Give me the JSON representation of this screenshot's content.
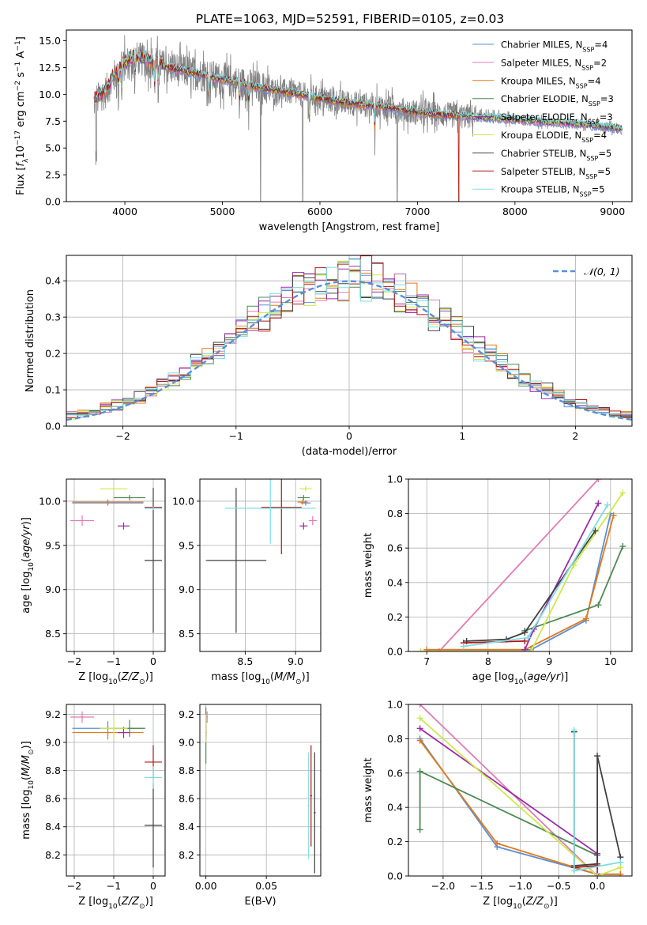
{
  "figure_title": "PLATE=1063, MJD=52591, FIBERID=0105, z=0.03",
  "model_colors": {
    "Chabrier MILES": "#5a8ed8",
    "Salpeter MILES": "#e07bb4",
    "Kroupa MILES": "#e07a1a",
    "Chabrier ELODIE": "#4f8a55",
    "Salpeter ELODIE": "#9b2aa8",
    "Kroupa ELODIE": "#cde84a",
    "Chabrier STELIB": "#404040",
    "Salpeter STELIB": "#b01818",
    "Kroupa STELIB": "#7fdde0"
  },
  "chart_data": [
    {
      "id": "spectrum",
      "type": "line",
      "xlabel": "wavelength [Angstrom, rest frame]",
      "ylabel": "Flux [f_λ 10^-17 erg cm^-2 s^-1 A^-1]",
      "xlim": [
        3400,
        9200
      ],
      "ylim": [
        0,
        16
      ],
      "xticks": [
        "4000",
        "5000",
        "6000",
        "7000",
        "8000",
        "9000"
      ],
      "yticks": [
        "0.0",
        "2.5",
        "5.0",
        "7.5",
        "10.0",
        "12.5",
        "15.0"
      ],
      "legend_position": "top-right",
      "legend": [
        {
          "model": "Chabrier MILES",
          "label": "Chabrier MILES, N",
          "sub": "SSP",
          "tail": "=4"
        },
        {
          "model": "Salpeter MILES",
          "label": "Salpeter MILES, N",
          "sub": "SSP",
          "tail": "=2"
        },
        {
          "model": "Kroupa MILES",
          "label": "Kroupa MILES, N",
          "sub": "SSP",
          "tail": "=4"
        },
        {
          "model": "Chabrier ELODIE",
          "label": "Chabrier ELODIE, N",
          "sub": "SSP",
          "tail": "=3"
        },
        {
          "model": "Salpeter ELODIE",
          "label": "Salpeter ELODIE, N",
          "sub": "SSP",
          "tail": "=3"
        },
        {
          "model": "Kroupa ELODIE",
          "label": "Kroupa ELODIE, N",
          "sub": "SSP",
          "tail": "=4"
        },
        {
          "model": "Chabrier STELIB",
          "label": "Chabrier STELIB, N",
          "sub": "SSP",
          "tail": "=5"
        },
        {
          "model": "Salpeter STELIB",
          "label": "Salpeter STELIB, N",
          "sub": "SSP",
          "tail": "=5"
        },
        {
          "model": "Kroupa STELIB",
          "label": "Kroupa STELIB, N",
          "sub": "SSP",
          "tail": "=5"
        }
      ],
      "observed_color": "#808080",
      "continuum": [
        [
          3680,
          9.2
        ],
        [
          3800,
          10.2
        ],
        [
          3900,
          11.8
        ],
        [
          4000,
          12.8
        ],
        [
          4100,
          13.4
        ],
        [
          4200,
          13.2
        ],
        [
          4400,
          12.6
        ],
        [
          4600,
          12.2
        ],
        [
          4800,
          11.8
        ],
        [
          5000,
          11.4
        ],
        [
          5200,
          11.0
        ],
        [
          5400,
          10.6
        ],
        [
          5600,
          10.3
        ],
        [
          5800,
          10.0
        ],
        [
          6000,
          9.6
        ],
        [
          6200,
          9.3
        ],
        [
          6400,
          9.1
        ],
        [
          6600,
          8.9
        ],
        [
          6800,
          8.6
        ],
        [
          7000,
          8.3
        ],
        [
          7400,
          8.0
        ],
        [
          7800,
          7.8
        ],
        [
          8200,
          7.5
        ],
        [
          8600,
          7.3
        ],
        [
          9000,
          6.9
        ],
        [
          9100,
          6.7
        ]
      ]
    },
    {
      "id": "residuals",
      "type": "step-histogram",
      "xlabel": "(data-model)/error",
      "ylabel": "Normed distribution",
      "xlim": [
        -2.5,
        2.5
      ],
      "ylim": [
        0,
        0.47
      ],
      "xticks": [
        "−2",
        "−1",
        "0",
        "1",
        "2"
      ],
      "yticks": [
        "0.0",
        "0.1",
        "0.2",
        "0.3",
        "0.4"
      ],
      "grid": true,
      "bin_width": 0.1,
      "legend": "𝒩(0, 1)",
      "legend_position": "top-right",
      "normal_color": "#5a8ed8"
    },
    {
      "id": "age_vs_z",
      "type": "errorbar",
      "xlabel": "Z [log10(Z/Z⊙)]",
      "ylabel": "age [log10(age/yr)]",
      "xlim": [
        -2.2,
        0.3
      ],
      "ylim": [
        8.3,
        10.25
      ],
      "xticks": [
        "−2",
        "−1",
        "0"
      ],
      "yticks": [
        "8.5",
        "9.0",
        "9.5",
        "10.0"
      ],
      "grid": true,
      "points": [
        {
          "model": "Chabrier MILES",
          "x": -1.15,
          "xerr": 0.9,
          "y": 9.98,
          "yerr": 0.03
        },
        {
          "model": "Salpeter MILES",
          "x": -1.8,
          "xerr": 0.3,
          "y": 9.78,
          "yerr": 0.06
        },
        {
          "model": "Kroupa MILES",
          "x": -1.15,
          "xerr": 0.9,
          "y": 9.99,
          "yerr": 0.03
        },
        {
          "model": "Chabrier ELODIE",
          "x": -0.6,
          "xerr": 0.4,
          "y": 10.04,
          "yerr": 0.03
        },
        {
          "model": "Salpeter ELODIE",
          "x": -0.75,
          "xerr": 0.15,
          "y": 9.72,
          "yerr": 0.04
        },
        {
          "model": "Kroupa ELODIE",
          "x": -1.0,
          "xerr": 0.35,
          "y": 10.14,
          "yerr": 0.03
        },
        {
          "model": "Chabrier STELIB",
          "x": 0.0,
          "xerr": 0.22,
          "y": 9.33,
          "yerr": 0.82
        },
        {
          "model": "Salpeter STELIB",
          "x": 0.0,
          "xerr": 0.22,
          "y": 9.93,
          "yerr": 0.02
        },
        {
          "model": "Kroupa STELIB",
          "x": 0.0,
          "xerr": 0.22,
          "y": 9.92,
          "yerr": 0.02
        }
      ]
    },
    {
      "id": "age_vs_mass",
      "type": "errorbar",
      "xlabel": "mass [log10(M/M⊙)]",
      "ylabel": "",
      "xlim": [
        8.05,
        9.25
      ],
      "ylim": [
        8.3,
        10.25
      ],
      "xticks": [
        "8.5",
        "9.0"
      ],
      "yticks": [
        "8.5",
        "9.0",
        "9.5",
        "10.0"
      ],
      "grid": true,
      "points": [
        {
          "model": "Chabrier MILES",
          "x": 9.1,
          "xerr": 0.05,
          "y": 9.98,
          "yerr": 0.03
        },
        {
          "model": "Salpeter MILES",
          "x": 9.17,
          "xerr": 0.04,
          "y": 9.78,
          "yerr": 0.05
        },
        {
          "model": "Kroupa MILES",
          "x": 9.07,
          "xerr": 0.05,
          "y": 9.99,
          "yerr": 0.03
        },
        {
          "model": "Chabrier ELODIE",
          "x": 9.08,
          "xerr": 0.06,
          "y": 10.04,
          "yerr": 0.03
        },
        {
          "model": "Salpeter ELODIE",
          "x": 9.08,
          "xerr": 0.04,
          "y": 9.72,
          "yerr": 0.04
        },
        {
          "model": "Kroupa ELODIE",
          "x": 9.1,
          "xerr": 0.06,
          "y": 10.14,
          "yerr": 0.03
        },
        {
          "model": "Chabrier STELIB",
          "x": 8.41,
          "xerr": 0.3,
          "y": 9.33,
          "yerr": 0.82
        },
        {
          "model": "Salpeter STELIB",
          "x": 8.86,
          "xerr": 0.2,
          "y": 9.93,
          "yerr": 0.53
        },
        {
          "model": "Kroupa STELIB",
          "x": 8.75,
          "xerr": 0.45,
          "y": 9.92,
          "yerr": 0.4
        }
      ]
    },
    {
      "id": "weight_vs_age",
      "type": "line",
      "xlabel": "age [log10(age/yr)]",
      "ylabel": "mass weight",
      "xlim": [
        6.7,
        10.35
      ],
      "ylim": [
        0,
        1.0
      ],
      "xticks": [
        "7",
        "8",
        "9",
        "10"
      ],
      "yticks": [
        "0.0",
        "0.2",
        "0.4",
        "0.6",
        "0.8",
        "1.0"
      ],
      "grid": true,
      "series": [
        {
          "model": "Chabrier MILES",
          "x": [
            7.0,
            8.7,
            9.6,
            10.0
          ],
          "y": [
            0.01,
            0.01,
            0.18,
            0.8
          ]
        },
        {
          "model": "Salpeter MILES",
          "x": [
            7.2,
            9.8
          ],
          "y": [
            0.0,
            1.0
          ]
        },
        {
          "model": "Kroupa MILES",
          "x": [
            7.0,
            8.6,
            9.6,
            10.05
          ],
          "y": [
            0.01,
            0.01,
            0.19,
            0.79
          ]
        },
        {
          "model": "Chabrier ELODIE",
          "x": [
            8.6,
            9.8,
            10.2
          ],
          "y": [
            0.12,
            0.27,
            0.61
          ]
        },
        {
          "model": "Salpeter ELODIE",
          "x": [
            8.6,
            8.75,
            9.8
          ],
          "y": [
            0.01,
            0.13,
            0.86
          ]
        },
        {
          "model": "Kroupa ELODIE",
          "x": [
            6.9,
            8.7,
            9.4,
            10.2
          ],
          "y": [
            0.0,
            0.0,
            0.5,
            0.92
          ]
        },
        {
          "model": "Chabrier STELIB",
          "x": [
            7.65,
            8.3,
            8.6,
            9.75
          ],
          "y": [
            0.06,
            0.07,
            0.11,
            0.7
          ]
        },
        {
          "model": "Salpeter STELIB",
          "x": [
            7.6,
            8.6
          ],
          "y": [
            0.05,
            0.06
          ]
        },
        {
          "model": "Kroupa STELIB",
          "x": [
            7.6,
            8.65,
            9.95
          ],
          "y": [
            0.03,
            0.08,
            0.85
          ]
        }
      ]
    },
    {
      "id": "mass_vs_z",
      "type": "errorbar",
      "xlabel": "Z [log10(Z/Z⊙)]",
      "ylabel": "mass [log10(M/M⊙)]",
      "xlim": [
        -2.2,
        0.3
      ],
      "ylim": [
        8.05,
        9.27
      ],
      "xticks": [
        "−2",
        "−1",
        "0"
      ],
      "yticks": [
        "8.2",
        "8.4",
        "8.6",
        "8.8",
        "9.0",
        "9.2"
      ],
      "grid": true,
      "points": [
        {
          "model": "Chabrier MILES",
          "x": -1.15,
          "xerr": 0.9,
          "y": 9.1,
          "yerr": 0.05
        },
        {
          "model": "Salpeter MILES",
          "x": -1.8,
          "xerr": 0.3,
          "y": 9.18,
          "yerr": 0.04
        },
        {
          "model": "Kroupa MILES",
          "x": -1.15,
          "xerr": 0.9,
          "y": 9.07,
          "yerr": 0.05
        },
        {
          "model": "Chabrier ELODIE",
          "x": -0.6,
          "xerr": 0.4,
          "y": 9.1,
          "yerr": 0.06
        },
        {
          "model": "Salpeter ELODIE",
          "x": -0.75,
          "xerr": 0.15,
          "y": 9.07,
          "yerr": 0.04
        },
        {
          "model": "Kroupa ELODIE",
          "x": -1.0,
          "xerr": 0.35,
          "y": 9.1,
          "yerr": 0.08
        },
        {
          "model": "Chabrier STELIB",
          "x": 0.0,
          "xerr": 0.22,
          "y": 8.41,
          "yerr": 0.3
        },
        {
          "model": "Salpeter STELIB",
          "x": 0.0,
          "xerr": 0.22,
          "y": 8.86,
          "yerr": 0.12
        },
        {
          "model": "Kroupa STELIB",
          "x": 0.0,
          "xerr": 0.22,
          "y": 8.75,
          "yerr": 0.08
        }
      ]
    },
    {
      "id": "mass_vs_ebv",
      "type": "errorbar",
      "xlabel": "E(B-V)",
      "ylabel": "",
      "xlim": [
        -0.005,
        0.095
      ],
      "ylim": [
        8.05,
        9.27
      ],
      "xticks": [
        "0.00",
        "0.05"
      ],
      "yticks": [
        "8.2",
        "8.4",
        "8.6",
        "8.8",
        "9.0",
        "9.2"
      ],
      "grid": true,
      "points": [
        {
          "model": "Chabrier MILES",
          "x": 0.0,
          "xerr": 0.0005,
          "y": 9.1,
          "yerr": 0.05
        },
        {
          "model": "Salpeter MILES",
          "x": 0.001,
          "xerr": 0.0005,
          "y": 9.18,
          "yerr": 0.04
        },
        {
          "model": "Kroupa MILES",
          "x": 0.0,
          "xerr": 0.0005,
          "y": 9.07,
          "yerr": 0.05
        },
        {
          "model": "Chabrier ELODIE",
          "x": 0.0,
          "xerr": 0.0005,
          "y": 9.05,
          "yerr": 0.2
        },
        {
          "model": "Salpeter ELODIE",
          "x": 0.0,
          "xerr": 0.0005,
          "y": 9.07,
          "yerr": 0.04
        },
        {
          "model": "Kroupa ELODIE",
          "x": 0.0,
          "xerr": 0.0005,
          "y": 9.1,
          "yerr": 0.1
        },
        {
          "model": "Chabrier STELIB",
          "x": 0.09,
          "xerr": 0.0008,
          "y": 8.5,
          "yerr": 0.43
        },
        {
          "model": "Salpeter STELIB",
          "x": 0.087,
          "xerr": 0.0008,
          "y": 8.62,
          "yerr": 0.36
        },
        {
          "model": "Kroupa STELIB",
          "x": 0.085,
          "xerr": 0.0008,
          "y": 8.55,
          "yerr": 0.38
        }
      ]
    },
    {
      "id": "weight_vs_z",
      "type": "line",
      "xlabel": "Z [log10(Z/Z⊙)]",
      "ylabel": "mass weight",
      "xlim": [
        -2.45,
        0.45
      ],
      "ylim": [
        0,
        1.0
      ],
      "xticks": [
        "−2.0",
        "−1.5",
        "−1.0",
        "−0.5",
        "0.0"
      ],
      "yticks": [
        "0.0",
        "0.2",
        "0.4",
        "0.6",
        "0.8",
        "1.0"
      ],
      "grid": true,
      "series": [
        {
          "model": "Chabrier MILES",
          "x": [
            -2.3,
            -1.3,
            0.0,
            0.3
          ],
          "y": [
            0.8,
            0.17,
            0.01,
            0.01
          ]
        },
        {
          "model": "Salpeter MILES",
          "x": [
            -2.3,
            0.0
          ],
          "y": [
            1.0,
            0.0
          ]
        },
        {
          "model": "Kroupa MILES",
          "x": [
            -2.3,
            -1.3,
            0.0,
            0.3
          ],
          "y": [
            0.79,
            0.19,
            0.01,
            0.01
          ]
        },
        {
          "model": "Chabrier ELODIE",
          "x": [
            -2.3,
            -2.3,
            0.0
          ],
          "y": [
            0.27,
            0.61,
            0.12
          ]
        },
        {
          "model": "Salpeter ELODIE",
          "x": [
            -2.3,
            0.0,
            0.0
          ],
          "y": [
            0.86,
            0.13,
            0.01
          ]
        },
        {
          "model": "Kroupa ELODIE",
          "x": [
            -2.3,
            0.0,
            0.3
          ],
          "y": [
            0.92,
            0.0,
            0.05
          ]
        },
        {
          "model": "Chabrier STELIB",
          "x": [
            -0.3,
            -0.3,
            0.0,
            0.0,
            0.3
          ],
          "y": [
            0.84,
            0.06,
            0.07,
            0.7,
            0.11
          ]
        },
        {
          "model": "Salpeter STELIB",
          "x": [
            -0.3,
            0.0
          ],
          "y": [
            0.05,
            0.06
          ]
        },
        {
          "model": "Kroupa STELIB",
          "x": [
            -0.3,
            -0.3,
            0.3
          ],
          "y": [
            0.85,
            0.03,
            0.08
          ]
        }
      ]
    }
  ]
}
